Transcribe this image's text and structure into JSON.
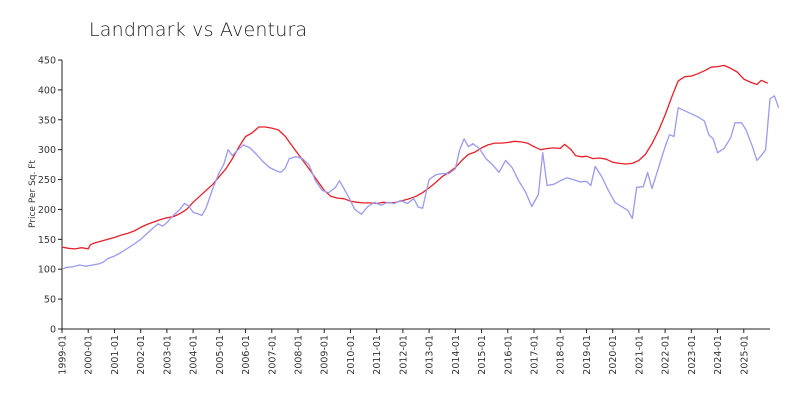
{
  "chart_data": {
    "type": "line",
    "title": "Landmark vs Aventura",
    "xlabel": "",
    "ylabel": "Price Per Sq. Ft",
    "ylim": [
      0,
      450
    ],
    "yticks": [
      0,
      50,
      100,
      150,
      200,
      250,
      300,
      350,
      400,
      450
    ],
    "xlim": [
      "1999-01",
      "2026-01"
    ],
    "xticks": [
      "1999-01",
      "2000-01",
      "2001-01",
      "2002-01",
      "2003-01",
      "2004-01",
      "2005-01",
      "2006-01",
      "2007-01",
      "2008-01",
      "2009-01",
      "2010-01",
      "2011-01",
      "2012-01",
      "2013-01",
      "2014-01",
      "2015-01",
      "2016-01",
      "2017-01",
      "2018-01",
      "2019-01",
      "2020-01",
      "2021-01",
      "2022-01",
      "2023-01",
      "2024-01",
      "2025-01"
    ],
    "grid": false,
    "legend": "none",
    "series": [
      {
        "color": "#e8202a",
        "points": [
          [
            "1999-01",
            137
          ],
          [
            "1999-04",
            135
          ],
          [
            "1999-07",
            134
          ],
          [
            "1999-10",
            136
          ],
          [
            "2000-01",
            134
          ],
          [
            "2000-02",
            141
          ],
          [
            "2000-04",
            144
          ],
          [
            "2000-07",
            147
          ],
          [
            "2000-10",
            150
          ],
          [
            "2001-01",
            153
          ],
          [
            "2001-04",
            157
          ],
          [
            "2001-07",
            160
          ],
          [
            "2001-10",
            164
          ],
          [
            "2002-01",
            170
          ],
          [
            "2002-04",
            175
          ],
          [
            "2002-07",
            179
          ],
          [
            "2002-10",
            183
          ],
          [
            "2003-01",
            186
          ],
          [
            "2003-04",
            188
          ],
          [
            "2003-07",
            193
          ],
          [
            "2003-10",
            200
          ],
          [
            "2004-01",
            212
          ],
          [
            "2004-04",
            222
          ],
          [
            "2004-07",
            232
          ],
          [
            "2004-10",
            242
          ],
          [
            "2005-01",
            255
          ],
          [
            "2005-04",
            268
          ],
          [
            "2005-07",
            285
          ],
          [
            "2005-10",
            305
          ],
          [
            "2006-01",
            322
          ],
          [
            "2006-04",
            328
          ],
          [
            "2006-07",
            338
          ],
          [
            "2006-10",
            338
          ],
          [
            "2007-01",
            336
          ],
          [
            "2007-04",
            333
          ],
          [
            "2007-07",
            323
          ],
          [
            "2007-10",
            308
          ],
          [
            "2008-01",
            293
          ],
          [
            "2008-04",
            278
          ],
          [
            "2008-07",
            263
          ],
          [
            "2008-10",
            247
          ],
          [
            "2009-01",
            232
          ],
          [
            "2009-04",
            222
          ],
          [
            "2009-07",
            219
          ],
          [
            "2009-10",
            218
          ],
          [
            "2010-01",
            214
          ],
          [
            "2010-04",
            212
          ],
          [
            "2010-07",
            211
          ],
          [
            "2010-10",
            211
          ],
          [
            "2011-01",
            210
          ],
          [
            "2011-04",
            212
          ],
          [
            "2011-07",
            211
          ],
          [
            "2011-10",
            212
          ],
          [
            "2012-01",
            215
          ],
          [
            "2012-04",
            218
          ],
          [
            "2012-07",
            222
          ],
          [
            "2012-10",
            228
          ],
          [
            "2013-01",
            236
          ],
          [
            "2013-04",
            245
          ],
          [
            "2013-07",
            255
          ],
          [
            "2013-10",
            262
          ],
          [
            "2014-01",
            270
          ],
          [
            "2014-04",
            282
          ],
          [
            "2014-07",
            292
          ],
          [
            "2014-10",
            296
          ],
          [
            "2015-01",
            303
          ],
          [
            "2015-04",
            308
          ],
          [
            "2015-07",
            311
          ],
          [
            "2015-10",
            311
          ],
          [
            "2016-01",
            312
          ],
          [
            "2016-04",
            314
          ],
          [
            "2016-07",
            313
          ],
          [
            "2016-10",
            311
          ],
          [
            "2017-01",
            305
          ],
          [
            "2017-04",
            300
          ],
          [
            "2017-07",
            302
          ],
          [
            "2017-10",
            303
          ],
          [
            "2018-01",
            302
          ],
          [
            "2018-03",
            309
          ],
          [
            "2018-06",
            300
          ],
          [
            "2018-08",
            290
          ],
          [
            "2018-11",
            288
          ],
          [
            "2019-01",
            289
          ],
          [
            "2019-04",
            285
          ],
          [
            "2019-07",
            286
          ],
          [
            "2019-10",
            284
          ],
          [
            "2020-01",
            279
          ],
          [
            "2020-04",
            277
          ],
          [
            "2020-07",
            276
          ],
          [
            "2020-10",
            277
          ],
          [
            "2021-01",
            282
          ],
          [
            "2021-04",
            292
          ],
          [
            "2021-07",
            310
          ],
          [
            "2021-10",
            332
          ],
          [
            "2022-01",
            358
          ],
          [
            "2022-04",
            388
          ],
          [
            "2022-07",
            415
          ],
          [
            "2022-10",
            422
          ],
          [
            "2023-01",
            423
          ],
          [
            "2023-04",
            427
          ],
          [
            "2023-07",
            432
          ],
          [
            "2023-10",
            438
          ],
          [
            "2024-01",
            439
          ],
          [
            "2024-04",
            441
          ],
          [
            "2024-07",
            436
          ],
          [
            "2024-10",
            430
          ],
          [
            "2025-01",
            418
          ],
          [
            "2025-04",
            413
          ],
          [
            "2025-07",
            409
          ],
          [
            "2025-09",
            416
          ],
          [
            "2025-12",
            411
          ]
        ]
      },
      {
        "color": "#9a9af0",
        "points": [
          [
            "1999-01",
            100
          ],
          [
            "1999-03",
            103
          ],
          [
            "1999-06",
            104
          ],
          [
            "1999-09",
            107
          ],
          [
            "1999-12",
            105
          ],
          [
            "2000-03",
            107
          ],
          [
            "2000-06",
            109
          ],
          [
            "2000-08",
            112
          ],
          [
            "2000-10",
            118
          ],
          [
            "2001-01",
            122
          ],
          [
            "2001-04",
            128
          ],
          [
            "2001-07",
            135
          ],
          [
            "2001-10",
            142
          ],
          [
            "2002-01",
            150
          ],
          [
            "2002-04",
            160
          ],
          [
            "2002-07",
            170
          ],
          [
            "2002-09",
            176
          ],
          [
            "2002-11",
            172
          ],
          [
            "2003-01",
            178
          ],
          [
            "2003-04",
            190
          ],
          [
            "2003-07",
            200
          ],
          [
            "2003-09",
            210
          ],
          [
            "2003-11",
            206
          ],
          [
            "2004-01",
            195
          ],
          [
            "2004-03",
            193
          ],
          [
            "2004-05",
            190
          ],
          [
            "2004-07",
            203
          ],
          [
            "2004-10",
            235
          ],
          [
            "2005-01",
            262
          ],
          [
            "2005-03",
            275
          ],
          [
            "2005-05",
            300
          ],
          [
            "2005-07",
            290
          ],
          [
            "2005-09",
            298
          ],
          [
            "2005-12",
            308
          ],
          [
            "2006-03",
            303
          ],
          [
            "2006-06",
            292
          ],
          [
            "2006-09",
            280
          ],
          [
            "2006-12",
            270
          ],
          [
            "2007-03",
            265
          ],
          [
            "2007-05",
            262
          ],
          [
            "2007-07",
            268
          ],
          [
            "2007-09",
            285
          ],
          [
            "2007-12",
            288
          ],
          [
            "2008-03",
            285
          ],
          [
            "2008-06",
            275
          ],
          [
            "2008-09",
            248
          ],
          [
            "2008-12",
            232
          ],
          [
            "2009-03",
            228
          ],
          [
            "2009-06",
            236
          ],
          [
            "2009-08",
            248
          ],
          [
            "2009-10",
            235
          ],
          [
            "2009-12",
            222
          ],
          [
            "2010-03",
            200
          ],
          [
            "2010-06",
            192
          ],
          [
            "2010-09",
            205
          ],
          [
            "2010-12",
            212
          ],
          [
            "2011-03",
            207
          ],
          [
            "2011-06",
            212
          ],
          [
            "2011-09",
            210
          ],
          [
            "2011-12",
            215
          ],
          [
            "2012-03",
            210
          ],
          [
            "2012-06",
            218
          ],
          [
            "2012-08",
            204
          ],
          [
            "2012-10",
            202
          ],
          [
            "2013-01",
            250
          ],
          [
            "2013-04",
            258
          ],
          [
            "2013-07",
            260
          ],
          [
            "2013-10",
            260
          ],
          [
            "2014-01",
            268
          ],
          [
            "2014-03",
            300
          ],
          [
            "2014-05",
            318
          ],
          [
            "2014-07",
            305
          ],
          [
            "2014-09",
            310
          ],
          [
            "2014-12",
            302
          ],
          [
            "2015-03",
            285
          ],
          [
            "2015-06",
            275
          ],
          [
            "2015-09",
            262
          ],
          [
            "2015-12",
            282
          ],
          [
            "2016-03",
            270
          ],
          [
            "2016-06",
            248
          ],
          [
            "2016-09",
            230
          ],
          [
            "2016-12",
            205
          ],
          [
            "2017-03",
            225
          ],
          [
            "2017-05",
            295
          ],
          [
            "2017-07",
            240
          ],
          [
            "2017-10",
            242
          ],
          [
            "2018-01",
            248
          ],
          [
            "2018-04",
            253
          ],
          [
            "2018-07",
            250
          ],
          [
            "2018-10",
            246
          ],
          [
            "2019-01",
            247
          ],
          [
            "2019-03",
            240
          ],
          [
            "2019-05",
            272
          ],
          [
            "2019-08",
            255
          ],
          [
            "2019-11",
            232
          ],
          [
            "2020-02",
            212
          ],
          [
            "2020-05",
            205
          ],
          [
            "2020-08",
            198
          ],
          [
            "2020-10",
            185
          ],
          [
            "2020-12",
            237
          ],
          [
            "2021-03",
            238
          ],
          [
            "2021-05",
            262
          ],
          [
            "2021-07",
            235
          ],
          [
            "2021-10",
            270
          ],
          [
            "2022-01",
            305
          ],
          [
            "2022-03",
            325
          ],
          [
            "2022-05",
            322
          ],
          [
            "2022-07",
            370
          ],
          [
            "2022-10",
            365
          ],
          [
            "2023-01",
            360
          ],
          [
            "2023-04",
            355
          ],
          [
            "2023-07",
            348
          ],
          [
            "2023-09",
            325
          ],
          [
            "2023-11",
            318
          ],
          [
            "2024-01",
            295
          ],
          [
            "2024-04",
            302
          ],
          [
            "2024-07",
            320
          ],
          [
            "2024-09",
            345
          ],
          [
            "2024-12",
            345
          ],
          [
            "2025-02",
            333
          ],
          [
            "2025-05",
            305
          ],
          [
            "2025-07",
            282
          ],
          [
            "2025-09",
            290
          ],
          [
            "2025-11",
            300
          ],
          [
            "2026-01",
            385
          ],
          [
            "2026-03",
            390
          ],
          [
            "2026-05",
            370
          ]
        ]
      }
    ]
  }
}
